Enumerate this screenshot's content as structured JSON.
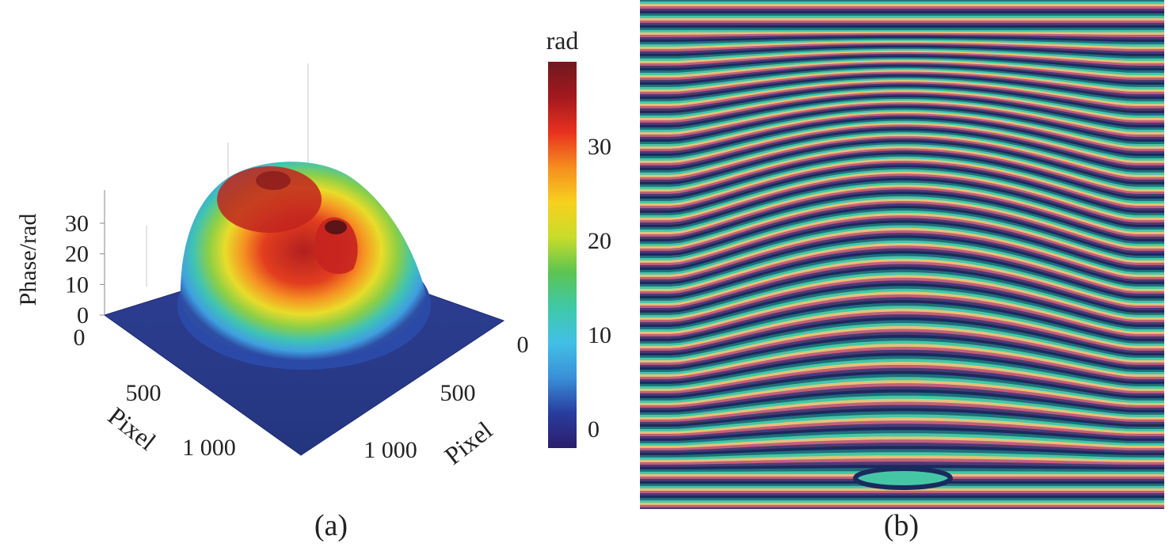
{
  "panel_a": {
    "caption": "(a)",
    "z_axis_label": "Phase/rad",
    "z_ticks": [
      "0",
      "10",
      "20",
      "30"
    ],
    "x_axis_label": "Pixel",
    "x_ticks": [
      "0",
      "500",
      "1 000"
    ],
    "y_axis_label": "Pixel",
    "y_ticks": [
      "0",
      "500",
      "1 000"
    ],
    "colorbar": {
      "unit": "rad",
      "ticks": [
        "0",
        "10",
        "20",
        "30"
      ],
      "colors": [
        "#2b1c6b",
        "#283d9e",
        "#3a8fd8",
        "#41c0e6",
        "#3fc9a8",
        "#5cc452",
        "#c8dc2a",
        "#f7d11e",
        "#f68d1e",
        "#e8311f",
        "#a3181e",
        "#6e1a1f"
      ]
    }
  },
  "panel_b": {
    "caption": "(b)",
    "fringe_colors": [
      "#1a2a5e",
      "#1f6f7a",
      "#45c7a6",
      "#e3c27a",
      "#c3607a",
      "#4a3b74"
    ]
  },
  "chart_data": [
    {
      "type": "surface",
      "panel": "a",
      "zlabel": "Phase/rad",
      "xlabel": "Pixel",
      "ylabel": "Pixel",
      "x_range": [
        0,
        1200
      ],
      "y_range": [
        0,
        1200
      ],
      "z_range": [
        0,
        38
      ],
      "z_ticks": [
        0,
        10,
        20,
        30
      ],
      "x_ticks": [
        0,
        500,
        1000
      ],
      "y_ticks": [
        0,
        500,
        1000
      ],
      "colorbar": {
        "label": "rad",
        "range": [
          -2,
          39
        ],
        "ticks": [
          0,
          10,
          20,
          30
        ]
      },
      "features": [
        {
          "name": "baseline",
          "phase": 0
        },
        {
          "name": "dome-peak",
          "phase": 37
        },
        {
          "name": "secondary-peak",
          "phase": 35
        }
      ]
    },
    {
      "type": "heatmap",
      "panel": "b"
    }
  ]
}
